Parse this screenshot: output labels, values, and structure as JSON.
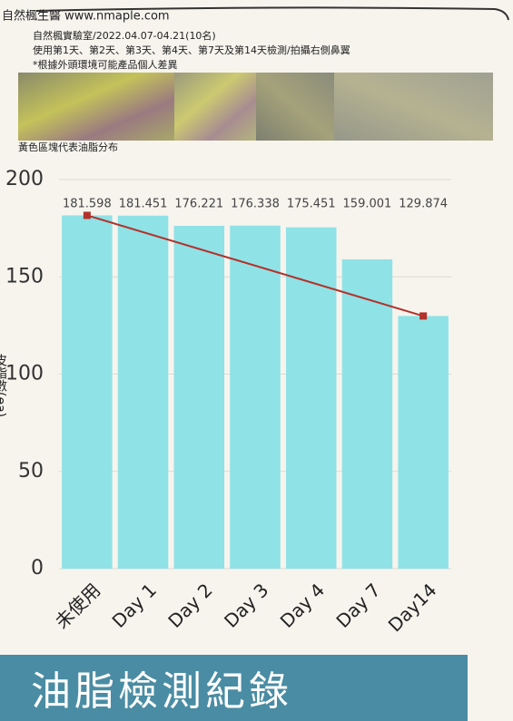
{
  "header": {
    "brand": "自然楓生醫 www.nmaple.com",
    "lines": [
      "自然楓實驗室/2022.04.07-04.21(10名)",
      "使用第1天、第2天、第3天、第4天、第7天及第14天檢測/拍攝右側鼻翼",
      "*根據外頭環境可能產品個人差異"
    ],
    "caption": "黃色區塊代表油脂分布"
  },
  "chart_data": {
    "type": "bar",
    "y_label": "皮脂數(ea)",
    "categories": [
      "未使用",
      "Day 1",
      "Day 2",
      "Day 3",
      "Day 4",
      "Day 7",
      "Day14"
    ],
    "values": [
      181.598,
      181.451,
      176.221,
      176.338,
      175.451,
      159.001,
      129.874
    ],
    "color": "#8fe2e6",
    "trend_color": "#b3312b",
    "ylim": [
      0,
      200
    ],
    "yticks": [
      0,
      50,
      100,
      150,
      200
    ],
    "grid": true
  },
  "banner": {
    "title": "油脂檢測紀錄"
  }
}
